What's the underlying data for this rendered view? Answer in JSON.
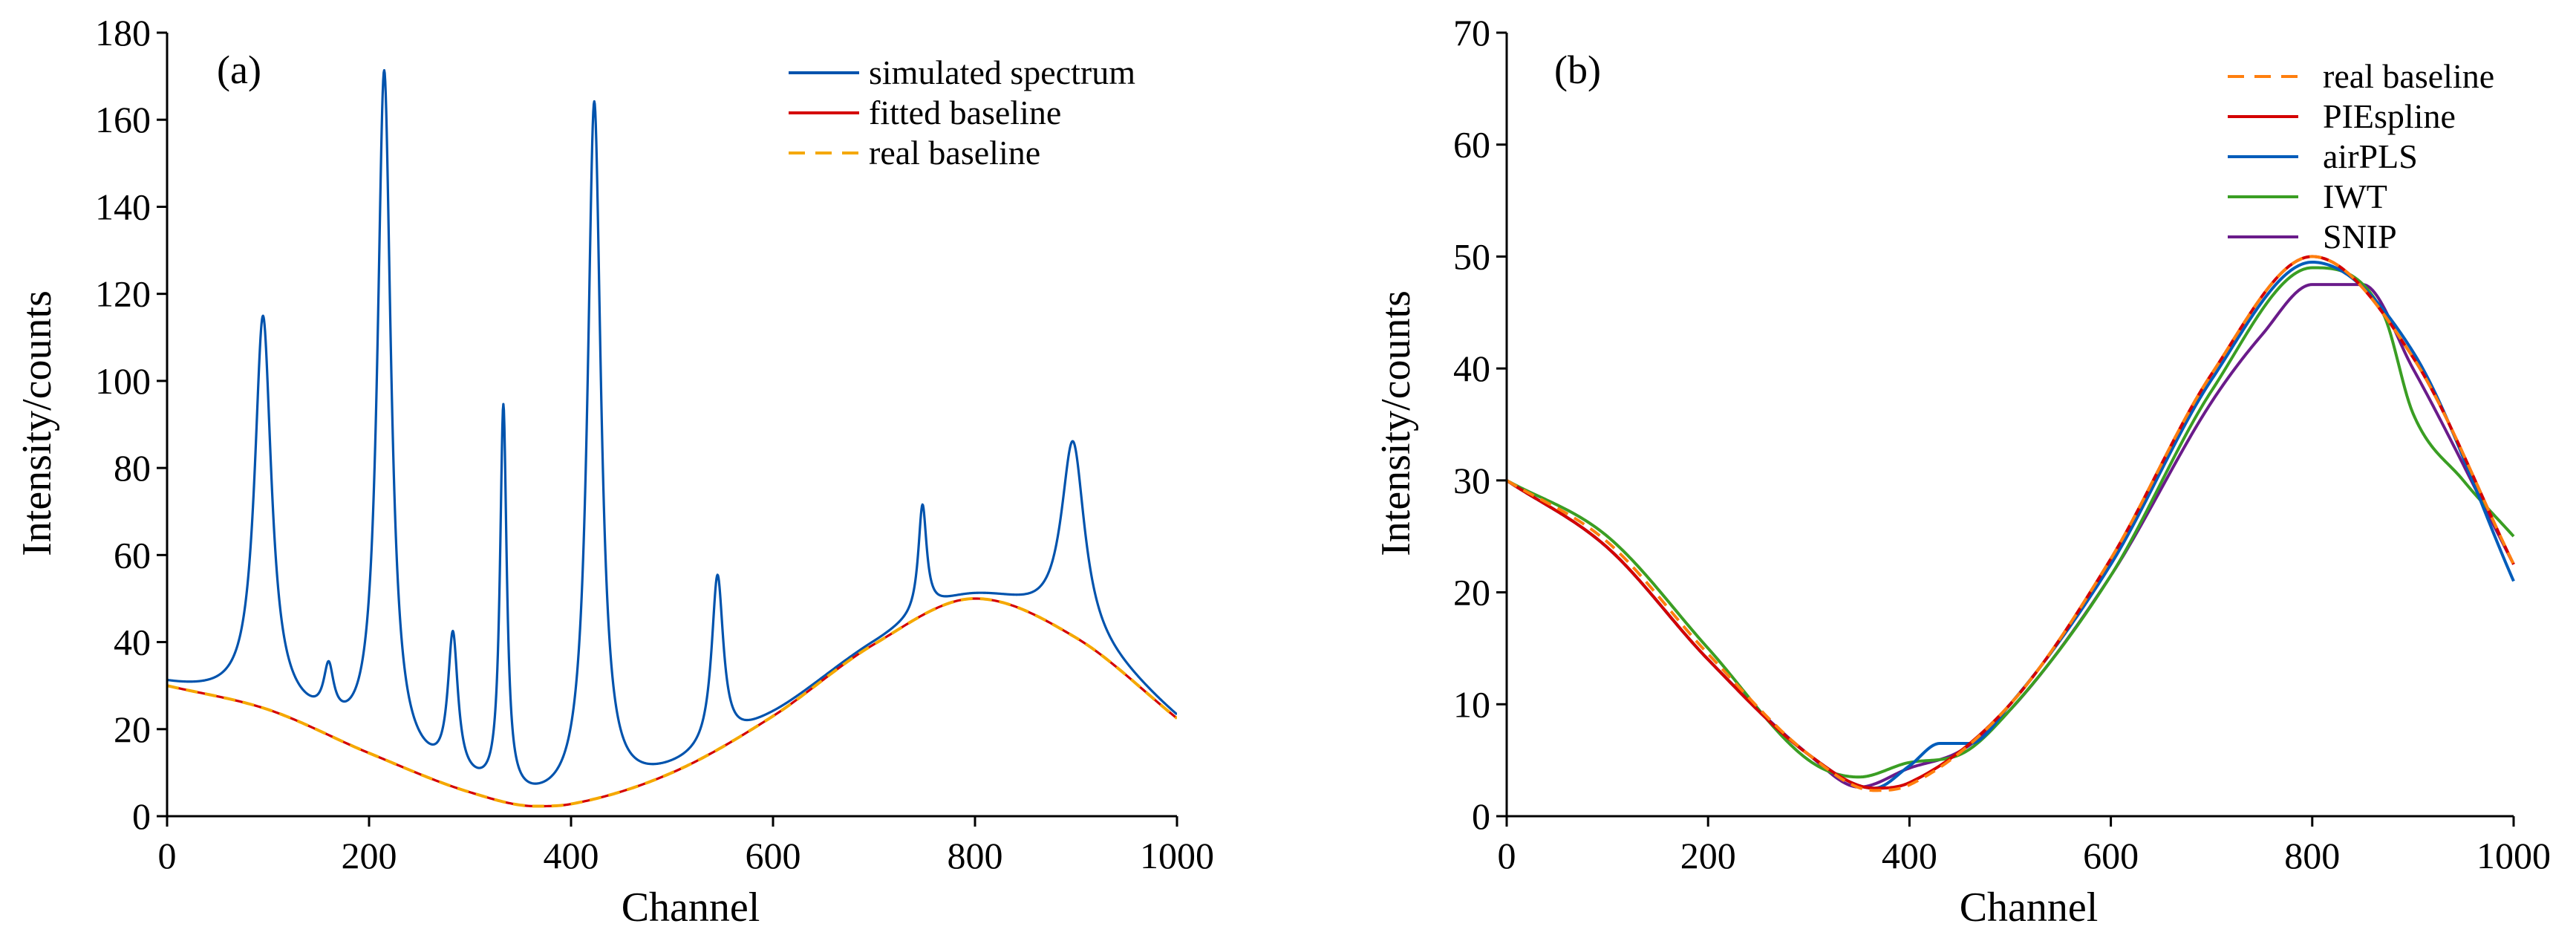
{
  "colors": {
    "simulated_spectrum": "#0053ad",
    "fitted_baseline": "#d40000",
    "real_baseline": "#f5a800",
    "real_baseline_b": "#ff7f0e",
    "PIEspline": "#d40000",
    "airPLS": "#005cba",
    "IWT": "#3a9e23",
    "SNIP": "#6a1b8a"
  },
  "chart_data": [
    {
      "type": "line",
      "panel_label": "(a)",
      "xlabel": "Channel",
      "ylabel": "Intensity/counts",
      "xlim": [
        0,
        1000
      ],
      "ylim": [
        0,
        180
      ],
      "xticks": [
        0,
        200,
        400,
        600,
        800,
        1000
      ],
      "yticks": [
        0,
        20,
        40,
        60,
        80,
        100,
        120,
        140,
        160,
        180
      ],
      "grid": false,
      "legend_position": "top-right",
      "baseline_points": {
        "x": [
          0,
          100,
          200,
          300,
          365,
          400,
          500,
          600,
          700,
          800,
          900,
          1000
        ],
        "y": [
          30,
          24.5,
          14.5,
          5.5,
          2.3,
          2.8,
          10,
          23,
          39.5,
          50,
          41,
          22.5
        ]
      },
      "peaks": [
        {
          "center": 95,
          "height": 114,
          "width": 10
        },
        {
          "center": 160,
          "height": 30,
          "width": 6
        },
        {
          "center": 215,
          "height": 170,
          "width": 8
        },
        {
          "center": 283,
          "height": 39,
          "width": 6
        },
        {
          "center": 333,
          "height": 92,
          "width": 4
        },
        {
          "center": 423,
          "height": 163.5,
          "width": 8
        },
        {
          "center": 545,
          "height": 54.5,
          "width": 7
        },
        {
          "center": 748,
          "height": 71,
          "width": 5
        },
        {
          "center": 897,
          "height": 86,
          "width": 14
        }
      ],
      "series": [
        {
          "name": "simulated spectrum",
          "style": "solid",
          "color_key": "simulated_spectrum"
        },
        {
          "name": "fitted baseline",
          "style": "solid",
          "color_key": "fitted_baseline"
        },
        {
          "name": "real baseline",
          "style": "dashed",
          "color_key": "real_baseline"
        }
      ]
    },
    {
      "type": "line",
      "panel_label": "(b)",
      "xlabel": "Channel",
      "ylabel": "Intensity/counts",
      "xlim": [
        0,
        1000
      ],
      "ylim": [
        0,
        70
      ],
      "xticks": [
        0,
        200,
        400,
        600,
        800,
        1000
      ],
      "yticks": [
        0,
        10,
        20,
        30,
        40,
        50,
        60,
        70
      ],
      "grid": false,
      "legend_position": "top-right",
      "series": [
        {
          "name": "real baseline",
          "style": "dashed",
          "color_key": "real_baseline_b",
          "x": [
            0,
            100,
            200,
            300,
            365,
            400,
            500,
            600,
            700,
            800,
            900,
            1000
          ],
          "y": [
            30,
            24.5,
            14.5,
            5.5,
            2.3,
            2.8,
            10,
            23,
            39.5,
            50,
            41,
            22.5
          ]
        },
        {
          "name": "PIEspline",
          "style": "solid",
          "color_key": "PIEspline",
          "x": [
            0,
            100,
            200,
            300,
            365,
            400,
            500,
            600,
            700,
            800,
            900,
            1000
          ],
          "y": [
            30,
            24,
            14,
            5.5,
            2.5,
            3,
            10,
            23,
            39.5,
            50,
            41,
            22.5
          ]
        },
        {
          "name": "airPLS",
          "style": "solid",
          "color_key": "airPLS",
          "x": [
            0,
            100,
            200,
            300,
            365,
            400,
            430,
            460,
            500,
            600,
            700,
            800,
            900,
            1000
          ],
          "y": [
            30,
            24,
            14,
            5.5,
            2.5,
            4.5,
            6.5,
            6.5,
            10,
            22.5,
            39,
            49.5,
            41.5,
            21
          ]
        },
        {
          "name": "IWT",
          "style": "solid",
          "color_key": "IWT",
          "x": [
            0,
            100,
            200,
            300,
            350,
            400,
            450,
            500,
            600,
            700,
            800,
            870,
            900,
            950,
            1000
          ],
          "y": [
            30,
            25,
            15,
            5,
            3.5,
            4.8,
            5.5,
            9.5,
            21.5,
            38,
            49,
            45,
            36,
            30,
            25
          ]
        },
        {
          "name": "SNIP",
          "style": "solid",
          "color_key": "SNIP",
          "x": [
            0,
            100,
            200,
            300,
            350,
            400,
            450,
            500,
            600,
            700,
            750,
            800,
            850,
            900,
            1000
          ],
          "y": [
            30,
            24,
            14,
            5.5,
            2.6,
            4.3,
            5.8,
            9.5,
            21.5,
            37,
            43,
            47.5,
            47.5,
            40,
            22.5
          ]
        }
      ]
    }
  ]
}
